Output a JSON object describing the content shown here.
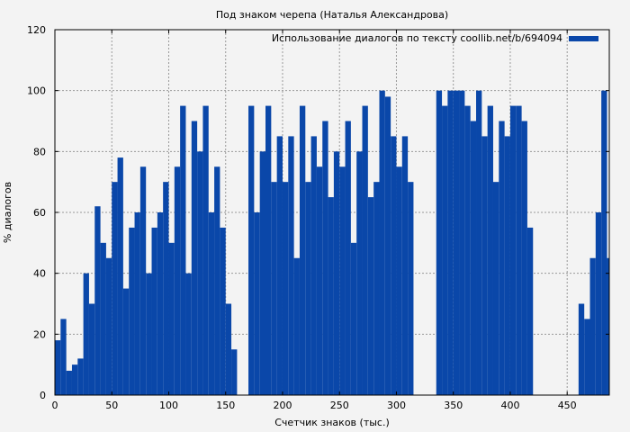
{
  "chart_data": {
    "type": "bar",
    "title": "Под знаком черепа (Наталья Александрова)",
    "xlabel": "Счетчик знаков (тыс.)",
    "ylabel": "% диалогов",
    "xlim": [
      0,
      487
    ],
    "ylim": [
      0,
      120
    ],
    "xticks": [
      0,
      50,
      100,
      150,
      200,
      250,
      300,
      350,
      400,
      450
    ],
    "yticks": [
      0,
      20,
      40,
      60,
      80,
      100,
      120
    ],
    "grid": true,
    "legend_position": "top-right",
    "series": [
      {
        "name": "Использование диалогов по тексту coollib.net/b/694094",
        "color": "#0a47a9",
        "x": [
          0,
          5,
          10,
          15,
          20,
          25,
          30,
          35,
          40,
          45,
          50,
          55,
          60,
          65,
          70,
          75,
          80,
          85,
          90,
          95,
          100,
          105,
          110,
          115,
          120,
          125,
          130,
          135,
          140,
          145,
          150,
          155,
          160,
          165,
          170,
          175,
          180,
          185,
          190,
          195,
          200,
          205,
          210,
          215,
          220,
          225,
          230,
          235,
          240,
          245,
          250,
          255,
          260,
          265,
          270,
          275,
          280,
          285,
          290,
          295,
          300,
          305,
          310,
          315,
          320,
          325,
          330,
          335,
          340,
          345,
          350,
          355,
          360,
          365,
          370,
          375,
          380,
          385,
          390,
          395,
          400,
          405,
          410,
          415,
          420,
          425,
          430,
          435,
          440,
          445,
          450,
          455,
          460,
          465,
          470,
          475,
          480,
          485
        ],
        "values": [
          18,
          25,
          8,
          10,
          12,
          40,
          30,
          62,
          50,
          45,
          70,
          78,
          35,
          55,
          60,
          75,
          40,
          55,
          60,
          70,
          50,
          75,
          95,
          40,
          90,
          80,
          95,
          60,
          75,
          55,
          30,
          15,
          0,
          0,
          95,
          60,
          80,
          95,
          70,
          85,
          70,
          85,
          45,
          95,
          70,
          85,
          75,
          90,
          65,
          80,
          75,
          90,
          50,
          80,
          95,
          65,
          70,
          100,
          98,
          85,
          75,
          85,
          70,
          0,
          0,
          0,
          0,
          100,
          95,
          100,
          100,
          100,
          95,
          90,
          100,
          85,
          95,
          70,
          90,
          85,
          95,
          95,
          90,
          55,
          0,
          0,
          0,
          0,
          0,
          0,
          0,
          0,
          30,
          25,
          45,
          60,
          100,
          45
        ]
      }
    ]
  }
}
